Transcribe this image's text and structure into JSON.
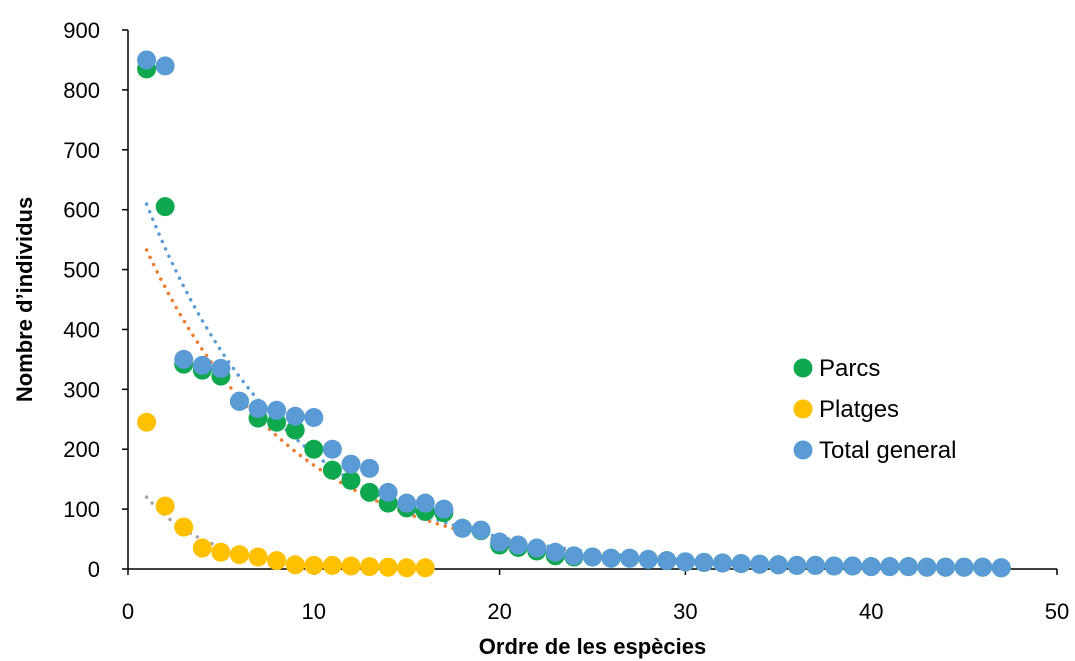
{
  "chart_data": {
    "type": "scatter",
    "title": "",
    "xlabel": "Ordre de les espècies",
    "ylabel": "Nombre d’individus",
    "xlim": [
      0,
      50
    ],
    "ylim": [
      0,
      900
    ],
    "x_ticks": [
      0,
      10,
      20,
      30,
      40,
      50
    ],
    "y_ticks": [
      0,
      100,
      200,
      300,
      400,
      500,
      600,
      700,
      800,
      900
    ],
    "grid": false,
    "legend_position": "right",
    "series": [
      {
        "name": "Parcs",
        "color": "#0FA84E",
        "trend_color": "#ED7D31",
        "x": [
          1,
          2,
          3,
          4,
          5,
          6,
          7,
          8,
          9,
          10,
          11,
          12,
          13,
          14,
          15,
          16,
          17,
          18,
          19,
          20,
          21,
          22,
          23,
          24,
          25,
          26,
          27,
          28,
          29,
          30,
          31,
          32,
          33,
          34,
          35,
          36,
          37,
          38,
          39,
          40,
          41,
          42,
          43,
          44,
          45,
          46,
          47
        ],
        "y": [
          835,
          605,
          342,
          332,
          322,
          280,
          252,
          245,
          232,
          200,
          165,
          148,
          128,
          110,
          102,
          96,
          94,
          68,
          64,
          40,
          36,
          30,
          22,
          20,
          20,
          18,
          18,
          16,
          14,
          12,
          11,
          10,
          9,
          8,
          7,
          6,
          6,
          5,
          5,
          4,
          4,
          4,
          3,
          3,
          3,
          3,
          2
        ]
      },
      {
        "name": "Platges",
        "color": "#FFC000",
        "trend_color": "#A5A5A5",
        "x": [
          1,
          2,
          3,
          4,
          5,
          6,
          7,
          8,
          9,
          10,
          11,
          12,
          13,
          14,
          15,
          16
        ],
        "y": [
          245,
          105,
          70,
          35,
          28,
          24,
          20,
          14,
          7,
          6,
          6,
          5,
          4,
          3,
          2,
          2
        ]
      },
      {
        "name": "Total general",
        "color": "#5B9BD5",
        "trend_color": "#5B9BD5",
        "x": [
          1,
          2,
          3,
          4,
          5,
          6,
          7,
          8,
          9,
          10,
          11,
          12,
          13,
          14,
          15,
          16,
          17,
          18,
          19,
          20,
          21,
          22,
          23,
          24,
          25,
          26,
          27,
          28,
          29,
          30,
          31,
          32,
          33,
          34,
          35,
          36,
          37,
          38,
          39,
          40,
          41,
          42,
          43,
          44,
          45,
          46,
          47
        ],
        "y": [
          850,
          840,
          350,
          340,
          335,
          280,
          268,
          265,
          255,
          253,
          200,
          175,
          168,
          128,
          110,
          110,
          100,
          68,
          65,
          45,
          40,
          35,
          28,
          22,
          20,
          18,
          18,
          16,
          14,
          12,
          11,
          10,
          9,
          8,
          7,
          6,
          6,
          5,
          5,
          4,
          4,
          4,
          3,
          3,
          3,
          3,
          2
        ]
      }
    ]
  }
}
